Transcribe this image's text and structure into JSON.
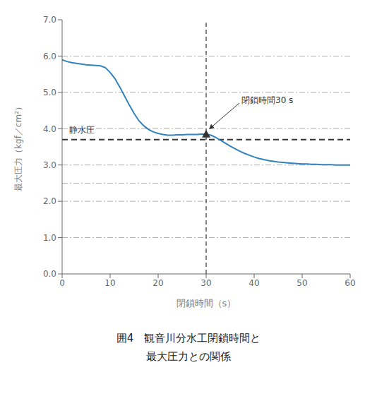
{
  "chart_data": {
    "type": "line",
    "title": "囲4　観音川分水工閉鎖時間と",
    "subtitle": "最大圧力との関係",
    "x_label": "閉鎖時間（s）",
    "y_label": "最大圧力（kgf／cm²）",
    "x": [
      0,
      1,
      2,
      3,
      4,
      5,
      6,
      7,
      8,
      9,
      10,
      11,
      12,
      13,
      14,
      15,
      16,
      17,
      18,
      19,
      20,
      21,
      22,
      23,
      24,
      25,
      26,
      27,
      28,
      29,
      30,
      31,
      32,
      33,
      34,
      35,
      36,
      37,
      38,
      39,
      40,
      41,
      42,
      43,
      44,
      45,
      46,
      47,
      48,
      49,
      50,
      51,
      52,
      53,
      54,
      55,
      56,
      57,
      58,
      59,
      60
    ],
    "values": [
      5.9,
      5.85,
      5.82,
      5.8,
      5.78,
      5.76,
      5.75,
      5.74,
      5.73,
      5.68,
      5.55,
      5.38,
      5.15,
      4.9,
      4.65,
      4.42,
      4.22,
      4.08,
      3.98,
      3.91,
      3.87,
      3.84,
      3.82,
      3.82,
      3.83,
      3.83,
      3.84,
      3.84,
      3.84,
      3.85,
      3.85,
      3.82,
      3.76,
      3.68,
      3.6,
      3.52,
      3.45,
      3.38,
      3.32,
      3.27,
      3.22,
      3.18,
      3.15,
      3.12,
      3.1,
      3.08,
      3.07,
      3.06,
      3.05,
      3.04,
      3.03,
      3.03,
      3.02,
      3.02,
      3.01,
      3.01,
      3.01,
      3.0,
      3.0,
      3.0,
      3.0
    ],
    "xlim": [
      0,
      60
    ],
    "ylim": [
      0.0,
      7.0
    ],
    "xticks": [
      0,
      10,
      20,
      30,
      40,
      50,
      60
    ],
    "yticks": [
      {
        "value": 0.0,
        "label": "0.0"
      },
      {
        "value": 1.0,
        "label": "1.0"
      },
      {
        "value": 2.0,
        "label": "2.0"
      },
      {
        "value": 3.0,
        "label": "3.0"
      },
      {
        "value": 4.0,
        "label": "4.0"
      },
      {
        "value": 5.0,
        "label": "5.0"
      },
      {
        "value": 6.0,
        "label": "6.0"
      },
      {
        "value": 7.0,
        "label": "7.0"
      }
    ],
    "grid_lines_y": [
      1.0,
      2.0,
      2.5,
      3.0,
      4.0,
      5.0,
      6.0
    ],
    "annotations": [
      {
        "type": "hline",
        "y": 3.7,
        "label": "静水圧"
      },
      {
        "type": "vline",
        "x": 30
      },
      {
        "type": "point",
        "x": 30,
        "y": 3.85,
        "label": "閉鎖時間30 s",
        "marker": "triangle"
      }
    ]
  }
}
